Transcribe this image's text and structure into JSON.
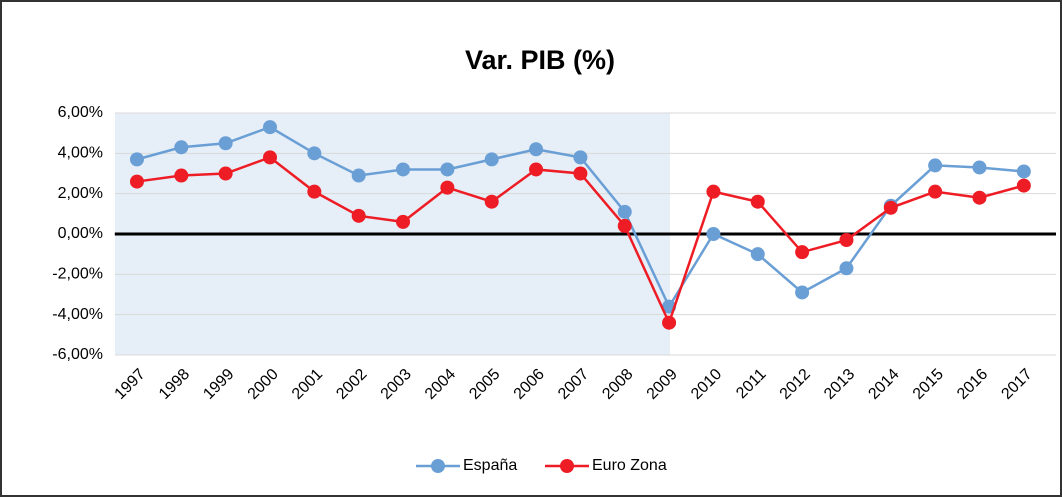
{
  "chart_data": {
    "type": "line",
    "title": "Var. PIB (%)",
    "categories": [
      "1997",
      "1998",
      "1999",
      "2000",
      "2001",
      "2002",
      "2003",
      "2004",
      "2005",
      "2006",
      "2007",
      "2008",
      "2009",
      "2010",
      "2011",
      "2012",
      "2013",
      "2014",
      "2015",
      "2016",
      "2017"
    ],
    "series": [
      {
        "name": "España",
        "color": "#6a9fd6",
        "values": [
          3.7,
          4.3,
          4.5,
          5.3,
          4.0,
          2.9,
          3.2,
          3.2,
          3.7,
          4.2,
          3.8,
          1.1,
          -3.6,
          0.0,
          -1.0,
          -2.9,
          -1.7,
          1.4,
          3.4,
          3.3,
          3.1
        ]
      },
      {
        "name": "Euro Zona",
        "color": "#ee1c24",
        "values": [
          2.6,
          2.9,
          3.0,
          3.8,
          2.1,
          0.9,
          0.6,
          2.3,
          1.6,
          3.2,
          3.0,
          0.4,
          -4.4,
          2.1,
          1.6,
          -0.9,
          -0.3,
          1.3,
          2.1,
          1.8,
          2.4
        ]
      }
    ],
    "ylim": [
      -6,
      6
    ],
    "yticks": [
      {
        "value": -6,
        "label": "-6,00%"
      },
      {
        "value": -4,
        "label": "-4,00%"
      },
      {
        "value": -2,
        "label": "-2,00%"
      },
      {
        "value": 0,
        "label": "0,00%"
      },
      {
        "value": 2,
        "label": "2,00%"
      },
      {
        "value": 4,
        "label": "4,00%"
      },
      {
        "value": 6,
        "label": "6,00%"
      }
    ],
    "grid": true,
    "legend": "bottom"
  }
}
